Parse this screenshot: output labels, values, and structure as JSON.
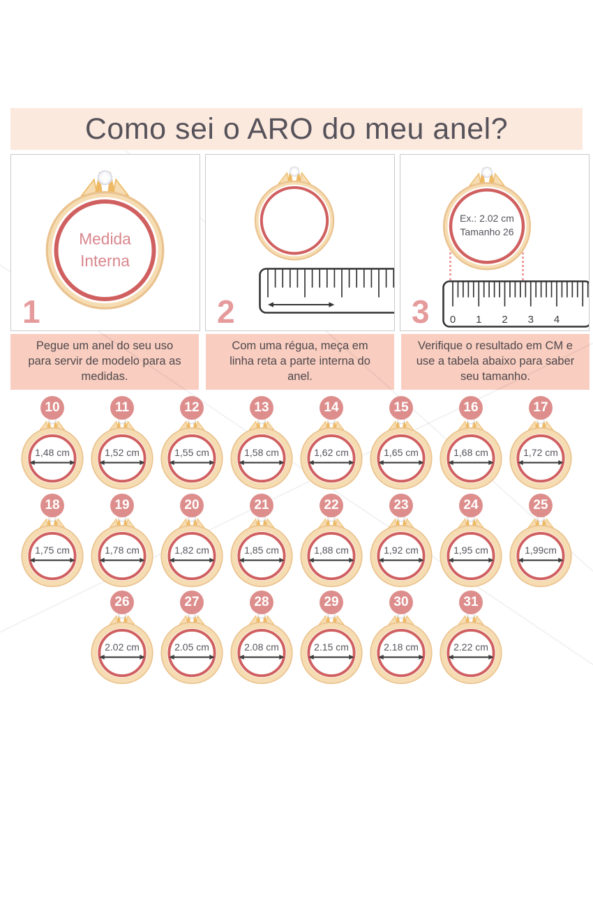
{
  "title": "Como sei o ARO do meu anel?",
  "steps": [
    {
      "number": "1",
      "caption": "Pegue um anel do seu uso para servir de modelo para as medidas.",
      "ring_lines": [
        "Medida",
        "Interna"
      ]
    },
    {
      "number": "2",
      "caption": "Com uma régua, meça em linha reta a parte interna do anel.",
      "ring_lines": []
    },
    {
      "number": "3",
      "caption": "Verifique o resultado em CM e use a tabela abaixo para saber seu tamanho.",
      "ring_lines": [
        "Ex.: 2.02 cm",
        "Tamanho 26"
      ],
      "ruler_numbers": [
        "0",
        "1",
        "2",
        "3",
        "4"
      ]
    }
  ],
  "size_chart": {
    "rows": [
      [
        {
          "size": "10",
          "measure": "1,48 cm"
        },
        {
          "size": "11",
          "measure": "1,52 cm"
        },
        {
          "size": "12",
          "measure": "1,55 cm"
        },
        {
          "size": "13",
          "measure": "1,58 cm"
        },
        {
          "size": "14",
          "measure": "1,62 cm"
        },
        {
          "size": "15",
          "measure": "1,65 cm"
        },
        {
          "size": "16",
          "measure": "1,68 cm"
        },
        {
          "size": "17",
          "measure": "1,72 cm"
        }
      ],
      [
        {
          "size": "18",
          "measure": "1,75 cm"
        },
        {
          "size": "19",
          "measure": "1,78 cm"
        },
        {
          "size": "20",
          "measure": "1,82 cm"
        },
        {
          "size": "21",
          "measure": "1,85 cm"
        },
        {
          "size": "22",
          "measure": "1,88 cm"
        },
        {
          "size": "23",
          "measure": "1,92 cm"
        },
        {
          "size": "24",
          "measure": "1,95 cm"
        },
        {
          "size": "25",
          "measure": "1,99cm"
        }
      ],
      [
        {
          "size": "26",
          "measure": "2.02 cm"
        },
        {
          "size": "27",
          "measure": "2.05 cm"
        },
        {
          "size": "28",
          "measure": "2.08 cm"
        },
        {
          "size": "29",
          "measure": "2.15 cm"
        },
        {
          "size": "30",
          "measure": "2.18 cm"
        },
        {
          "size": "31",
          "measure": "2.22 cm"
        }
      ]
    ]
  },
  "colors": {
    "banner_bg": "#fce9de",
    "banner_text": "#56525a",
    "step_box_border": "#c9c9c9",
    "caption_bg": "#f9cdc0",
    "caption_text": "#4e484b",
    "badge_bg": "#dd8e8c",
    "badge_text": "#ffffff",
    "step_number": "#e59a9b",
    "gold_fill": "#f6dcb2",
    "gold_stroke": "#eac28e",
    "gold_dark": "#eeb964",
    "red_ring": "#d05f60",
    "measure_text": "#55525a",
    "inner_label_pink": "#d9868d",
    "ruler_line": "#333333",
    "dotted_pink": "#ef9e9e"
  }
}
